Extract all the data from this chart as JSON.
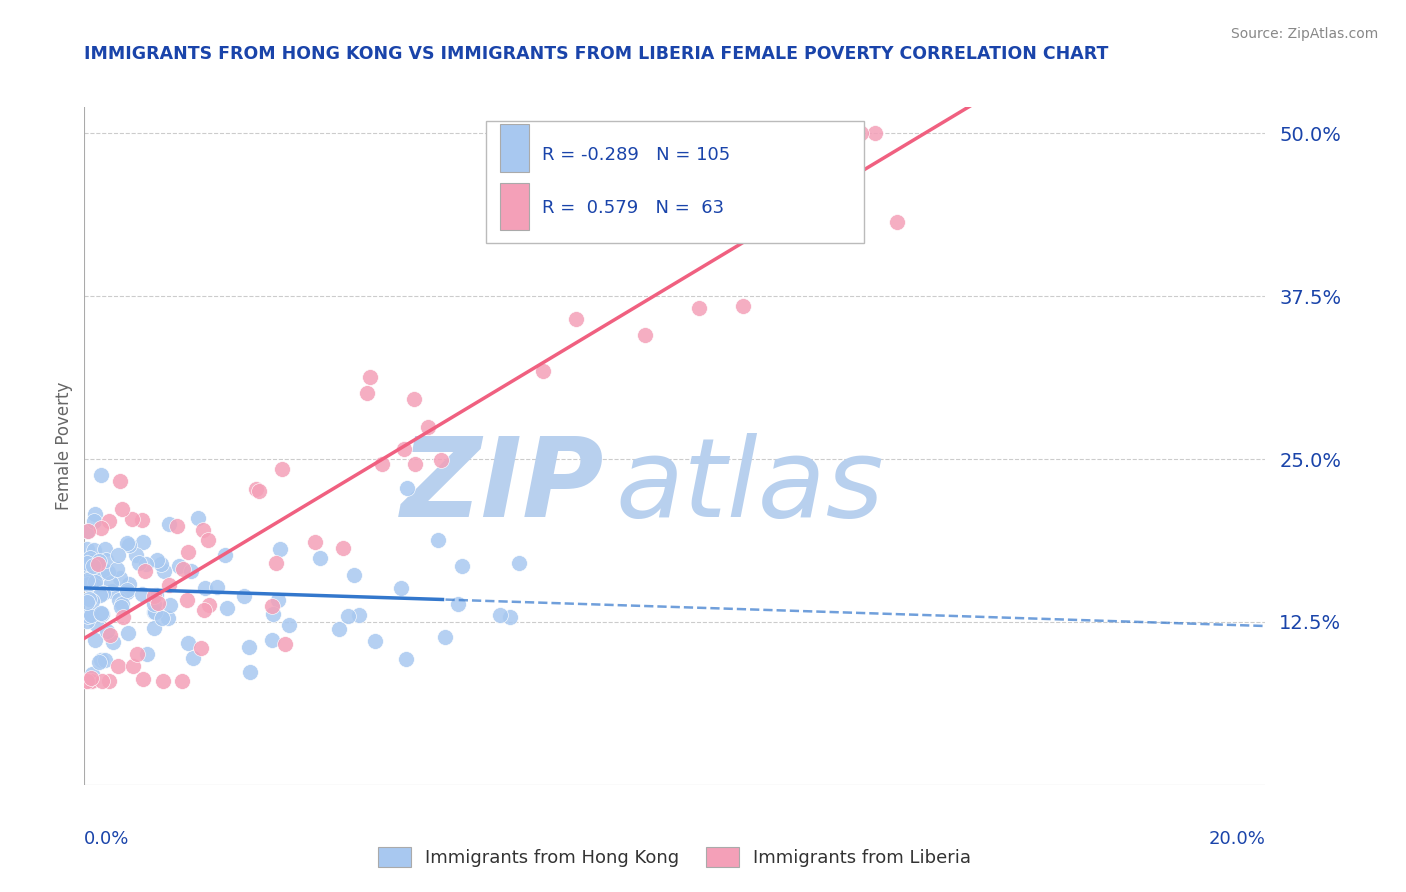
{
  "title": "IMMIGRANTS FROM HONG KONG VS IMMIGRANTS FROM LIBERIA FEMALE POVERTY CORRELATION CHART",
  "source": "Source: ZipAtlas.com",
  "ylabel": "Female Poverty",
  "y_ticks": [
    0.0,
    0.125,
    0.25,
    0.375,
    0.5
  ],
  "y_tick_labels": [
    "",
    "12.5%",
    "25.0%",
    "37.5%",
    "50.0%"
  ],
  "xlim": [
    0.0,
    0.2
  ],
  "ylim": [
    0.0,
    0.52
  ],
  "hk_R": -0.289,
  "hk_N": 105,
  "lib_R": 0.579,
  "lib_N": 63,
  "hk_color": "#a8c8f0",
  "lib_color": "#f4a0b8",
  "hk_line_color": "#3377cc",
  "lib_line_color": "#f06080",
  "title_color": "#1a44aa",
  "source_color": "#888888",
  "legend_text_color": "#1a44aa",
  "background_color": "#ffffff",
  "watermark_color": "#ccdff5",
  "grid_color": "#cccccc",
  "hk_seed": 42,
  "lib_seed": 99
}
